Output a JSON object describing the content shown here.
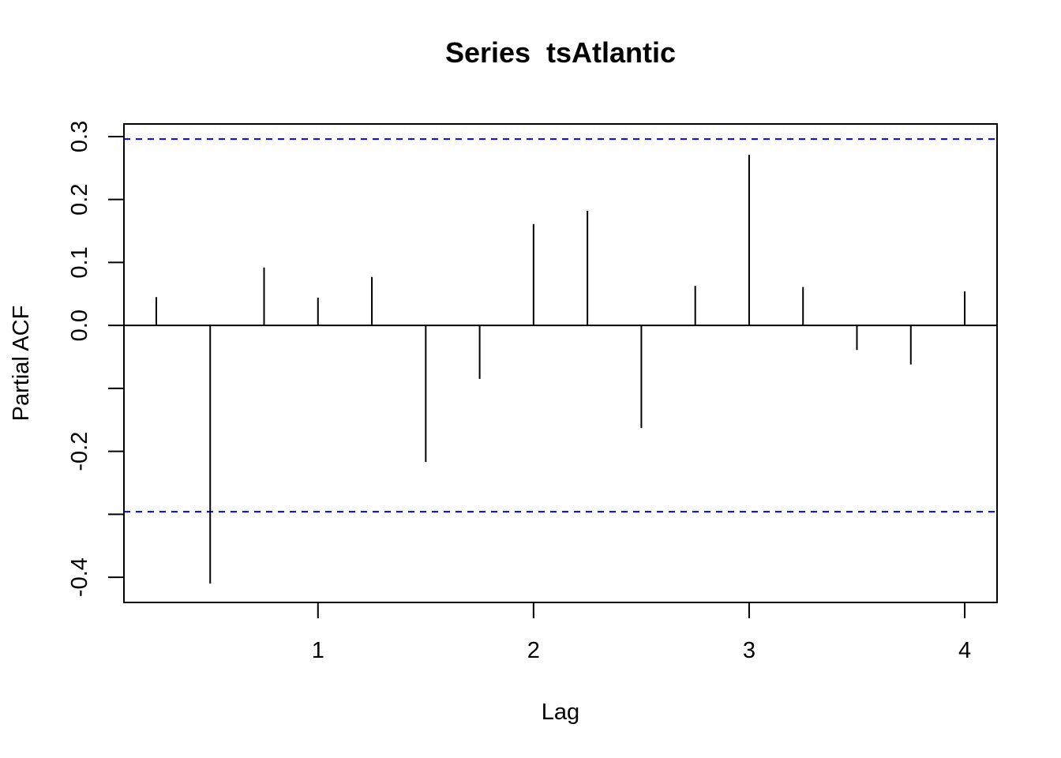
{
  "chart_data": {
    "type": "bar",
    "subtype": "pacf-spike",
    "title": "Series  tsAtlantic",
    "xlabel": "Lag",
    "ylabel": "Partial ACF",
    "xlim": [
      0.1,
      4.15
    ],
    "ylim": [
      -0.44,
      0.32
    ],
    "x_ticks": [
      1,
      2,
      3,
      4
    ],
    "x_tick_labels": [
      "1",
      "2",
      "3",
      "4"
    ],
    "y_ticks": [
      -0.4,
      -0.3,
      -0.2,
      -0.1,
      0.0,
      0.1,
      0.2,
      0.3
    ],
    "y_tick_labels": [
      "-0.4",
      "",
      "-0.2",
      "",
      "0.0",
      "0.1",
      "0.2",
      "0.3"
    ],
    "lags": [
      0.25,
      0.5,
      0.75,
      1.0,
      1.25,
      1.5,
      1.75,
      2.0,
      2.25,
      2.5,
      2.75,
      3.0,
      3.25,
      3.5,
      3.75,
      4.0
    ],
    "values": [
      0.045,
      -0.41,
      0.092,
      0.044,
      0.077,
      -0.217,
      -0.085,
      0.161,
      0.182,
      -0.163,
      0.063,
      0.271,
      0.061,
      -0.039,
      -0.062,
      0.054
    ],
    "confidence_bound": 0.296,
    "colors": {
      "spike": "#000000",
      "confidence_line": "#0000ff",
      "zero_line": "#000000",
      "frame": "#000000"
    }
  }
}
